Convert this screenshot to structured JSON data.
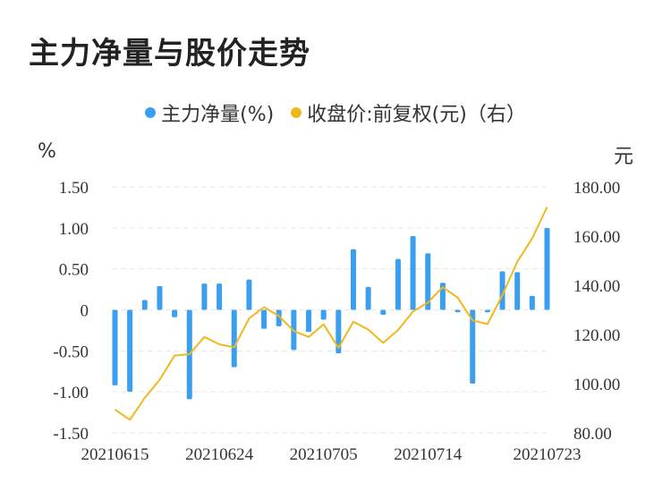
{
  "title": "主力净量与股价走势",
  "legend": {
    "series1": "主力净量(%)",
    "series2": "收盘价:前复权(元)（右）"
  },
  "units": {
    "left": "%",
    "right": "元"
  },
  "colors": {
    "bar": "#3b9ff0",
    "line": "#f0b81c",
    "grid": "#e6e6e6"
  },
  "chart_data": {
    "type": "bar",
    "x_tick_labels": [
      "20210615",
      "20210624",
      "20210705",
      "20210714",
      "20210723"
    ],
    "y_left": {
      "ylim": [
        -1.5,
        1.5
      ],
      "ticks": [
        1.5,
        1.0,
        0.5,
        0,
        -0.5,
        -1.0,
        -1.5
      ],
      "tick_labels": [
        "1.50",
        "1.00",
        "0.50",
        "0",
        "-0.50",
        "-1.00",
        "-1.50"
      ]
    },
    "y_right": {
      "ylim": [
        80,
        180
      ],
      "ticks": [
        180,
        160,
        140,
        120,
        100,
        80
      ],
      "tick_labels": [
        "180.00",
        "160.00",
        "140.00",
        "120.00",
        "100.00",
        "80.00"
      ]
    },
    "series": [
      {
        "name": "主力净量(%)",
        "type": "bar",
        "axis": "left",
        "values": [
          -0.92,
          -1.0,
          0.12,
          0.29,
          -0.09,
          -1.09,
          0.32,
          0.32,
          -0.7,
          0.37,
          -0.23,
          -0.2,
          -0.49,
          -0.27,
          -0.12,
          -0.53,
          0.74,
          0.28,
          -0.06,
          0.62,
          0.9,
          0.69,
          0.33,
          -0.03,
          -0.9,
          -0.03,
          0.47,
          0.46,
          0.17,
          1.0
        ]
      },
      {
        "name": "收盘价:前复权(元)（右）",
        "type": "line",
        "axis": "right",
        "values": [
          89.5,
          85.3,
          94.2,
          101.6,
          111.4,
          112.0,
          119.0,
          116.0,
          114.8,
          126.5,
          131.1,
          127.5,
          121.4,
          119.0,
          124.1,
          114.6,
          125.2,
          122.0,
          116.6,
          121.8,
          129.3,
          133.0,
          139.2,
          135.0,
          125.7,
          124.2,
          136.0,
          149.6,
          159.0,
          171.8
        ]
      }
    ]
  }
}
